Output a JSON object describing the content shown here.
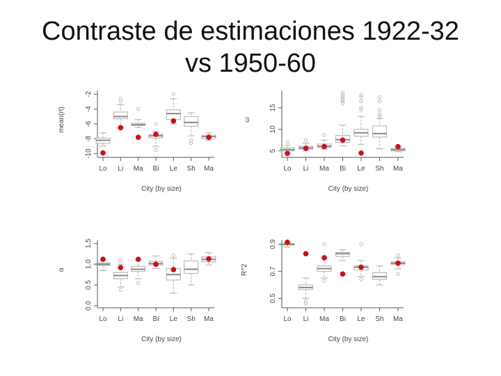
{
  "slide": {
    "title": "Contraste de estimaciones 1922-32\nvs 1950-60"
  },
  "chart_data": [
    {
      "type": "box",
      "xlabel": "City (by size)",
      "ylabel": "mean(rt)",
      "categories": [
        "Lo",
        "Li",
        "Ma",
        "Bi",
        "Le",
        "Sh",
        "Ma"
      ],
      "yticks": [
        -10,
        -8,
        -6,
        -4,
        -2
      ],
      "ytick_labels": [
        "-10",
        "-8",
        "-6",
        "-4",
        "-2"
      ],
      "ylim": [
        -10.5,
        -1.5
      ],
      "boxes": [
        {
          "min": -9.0,
          "q1": -8.6,
          "median": -8.2,
          "q3": -7.9,
          "max": -7.2,
          "outliers": []
        },
        {
          "min": -6.5,
          "q1": -5.3,
          "median": -5.0,
          "q3": -4.4,
          "max": -3.4,
          "outliers": [
            -2.6,
            -3.0
          ]
        },
        {
          "min": -6.5,
          "q1": -6.2,
          "median": -6.1,
          "q3": -5.9,
          "max": -5.4,
          "outliers": [
            -4.0
          ]
        },
        {
          "min": -9.0,
          "q1": -7.9,
          "median": -7.6,
          "q3": -7.4,
          "max": -7.0,
          "outliers": [
            -9.5,
            -6.0
          ]
        },
        {
          "min": -6.0,
          "q1": -5.4,
          "median": -4.6,
          "q3": -4.1,
          "max": -2.6,
          "outliers": [
            -2.0
          ]
        },
        {
          "min": -7.6,
          "q1": -6.3,
          "median": -5.8,
          "q3": -5.0,
          "max": -4.5,
          "outliers": [
            -8.6,
            -8.2
          ]
        },
        {
          "min": -8.2,
          "q1": -8.0,
          "median": -7.7,
          "q3": -7.5,
          "max": -7.2,
          "outliers": []
        }
      ],
      "points": [
        -9.9,
        -6.5,
        -7.8,
        -7.4,
        -5.6,
        null,
        -7.8
      ]
    },
    {
      "type": "box",
      "xlabel": "City (by size)",
      "ylabel": "ω",
      "categories": [
        "Lo",
        "Li",
        "Ma",
        "Bi",
        "Le",
        "Sh",
        "Ma"
      ],
      "yticks": [
        5,
        10,
        15
      ],
      "ytick_labels": [
        "5",
        "10",
        "15"
      ],
      "ylim": [
        3.5,
        19
      ],
      "boxes": [
        {
          "min": 4.6,
          "q1": 5.0,
          "median": 5.3,
          "q3": 5.7,
          "max": 6.3,
          "outliers": [
            7.0
          ]
        },
        {
          "min": 5.0,
          "q1": 5.4,
          "median": 5.7,
          "q3": 6.1,
          "max": 6.8,
          "outliers": [
            7.5
          ]
        },
        {
          "min": 5.4,
          "q1": 5.8,
          "median": 6.1,
          "q3": 6.6,
          "max": 7.5,
          "outliers": [
            8.7
          ]
        },
        {
          "min": 6.2,
          "q1": 7.0,
          "median": 7.6,
          "q3": 8.6,
          "max": 11.0,
          "outliers": [
            16.0,
            16.5,
            17.0,
            17.5,
            18.0,
            18.5
          ]
        },
        {
          "min": 6.5,
          "q1": 8.4,
          "median": 9.2,
          "q3": 10.0,
          "max": 13.0,
          "outliers": [
            14.5,
            15.0,
            16.5,
            17.5,
            18.0
          ]
        },
        {
          "min": 5.5,
          "q1": 8.2,
          "median": 9.0,
          "q3": 10.8,
          "max": 12.5,
          "outliers": [
            13.0,
            13.5,
            14.5,
            16.5,
            17.5
          ]
        },
        {
          "min": 4.8,
          "q1": 5.0,
          "median": 5.3,
          "q3": 5.6,
          "max": 6.0,
          "outliers": []
        }
      ],
      "points": [
        4.4,
        5.6,
        6.0,
        7.5,
        4.5,
        null,
        6.0
      ]
    },
    {
      "type": "box",
      "xlabel": "City (by size)",
      "ylabel": "α",
      "categories": [
        "Lo",
        "Li",
        "Ma",
        "Bi",
        "Le",
        "Sh",
        "Ma"
      ],
      "yticks": [
        0.0,
        0.5,
        1.0,
        1.5
      ],
      "ytick_labels": [
        "0.0",
        "0.5",
        "1.0",
        "1.5"
      ],
      "ylim": [
        -0.05,
        1.58
      ],
      "boxes": [
        {
          "min": 0.85,
          "q1": 0.97,
          "median": 1.0,
          "q3": 1.03,
          "max": 1.1,
          "outliers": []
        },
        {
          "min": 0.45,
          "q1": 0.65,
          "median": 0.73,
          "q3": 0.8,
          "max": 1.0,
          "outliers": [
            0.38,
            1.08
          ]
        },
        {
          "min": 0.65,
          "q1": 0.83,
          "median": 0.88,
          "q3": 0.95,
          "max": 1.1,
          "outliers": [
            0.55
          ]
        },
        {
          "min": 0.9,
          "q1": 0.98,
          "median": 1.02,
          "q3": 1.07,
          "max": 1.2,
          "outliers": []
        },
        {
          "min": 0.3,
          "q1": 0.62,
          "median": 0.75,
          "q3": 0.9,
          "max": 1.15,
          "outliers": [
            1.22
          ]
        },
        {
          "min": 0.5,
          "q1": 0.78,
          "median": 0.88,
          "q3": 1.08,
          "max": 1.25,
          "outliers": []
        },
        {
          "min": 0.98,
          "q1": 1.06,
          "median": 1.12,
          "q3": 1.18,
          "max": 1.28,
          "outliers": []
        }
      ],
      "points": [
        1.12,
        0.92,
        1.12,
        1.0,
        0.87,
        null,
        1.13
      ]
    },
    {
      "type": "box",
      "xlabel": "City (by size)",
      "ylabel": "R^2",
      "categories": [
        "Lo",
        "Li",
        "Ma",
        "Bi",
        "Le",
        "Sh",
        "Ma"
      ],
      "yticks": [
        0.5,
        0.7,
        0.9
      ],
      "ytick_labels": [
        "0.5",
        "0.7",
        "0.9"
      ],
      "ylim": [
        0.43,
        0.93
      ],
      "boxes": [
        {
          "min": 0.88,
          "q1": 0.895,
          "median": 0.9,
          "q3": 0.905,
          "max": 0.915,
          "outliers": []
        },
        {
          "min": 0.5,
          "q1": 0.565,
          "median": 0.58,
          "q3": 0.6,
          "max": 0.65,
          "outliers": [
            0.46,
            0.48
          ]
        },
        {
          "min": 0.65,
          "q1": 0.7,
          "median": 0.72,
          "q3": 0.74,
          "max": 0.8,
          "outliers": [
            0.63,
            0.9
          ]
        },
        {
          "min": 0.78,
          "q1": 0.81,
          "median": 0.83,
          "q3": 0.84,
          "max": 0.86,
          "outliers": []
        },
        {
          "min": 0.66,
          "q1": 0.71,
          "median": 0.73,
          "q3": 0.74,
          "max": 0.78,
          "outliers": [
            0.64,
            0.9
          ]
        },
        {
          "min": 0.6,
          "q1": 0.64,
          "median": 0.66,
          "q3": 0.69,
          "max": 0.74,
          "outliers": []
        },
        {
          "min": 0.72,
          "q1": 0.75,
          "median": 0.76,
          "q3": 0.77,
          "max": 0.8,
          "outliers": [
            0.68,
            0.82
          ]
        }
      ],
      "points": [
        0.915,
        0.83,
        0.8,
        0.68,
        0.73,
        null,
        0.76
      ]
    }
  ],
  "colors": {
    "box": "#bbbbbb",
    "axis": "#555555",
    "point": "#cc1111"
  }
}
